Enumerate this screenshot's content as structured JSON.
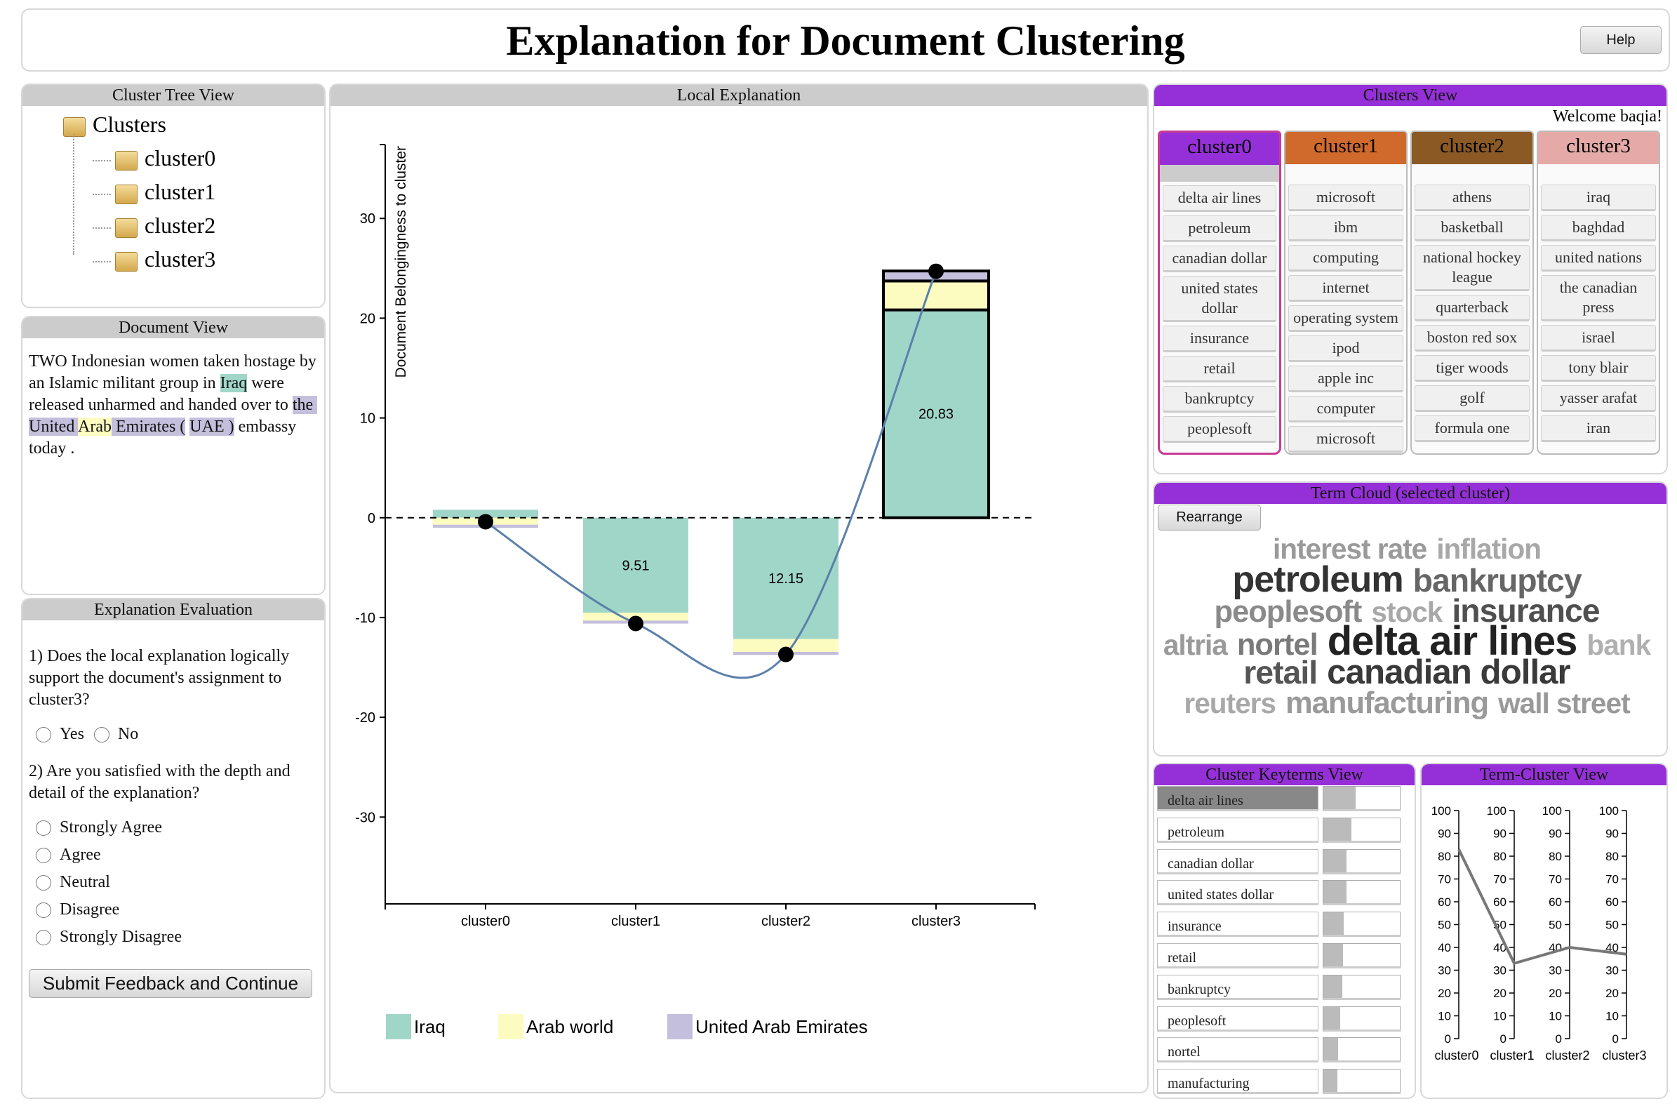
{
  "header": {
    "title": "Explanation for Document Clustering",
    "help": "Help"
  },
  "cluster_tree": {
    "title": "Cluster Tree View",
    "root": "Clusters",
    "children": [
      "cluster0",
      "cluster1",
      "cluster2",
      "cluster3"
    ]
  },
  "document_view": {
    "title": "Document View",
    "segments": [
      {
        "text": "TWO Indonesian women taken hostage by an Islamic militant group in ",
        "color": null
      },
      {
        "text": "Iraq",
        "color": "#a0d6c8"
      },
      {
        "text": " were released unharmed and handed over to ",
        "color": null
      },
      {
        "text": "the United",
        "color": "#c3bfdc"
      },
      {
        "text": " ",
        "color": "#c3bfdc"
      },
      {
        "text": "Arab",
        "color": "#fdfcc0"
      },
      {
        "text": " ",
        "color": "#c3bfdc"
      },
      {
        "text": "Emirates (",
        "color": "#c3bfdc"
      },
      {
        "text": " ",
        "color": null
      },
      {
        "text": "UAE )",
        "color": "#c3bfdc"
      },
      {
        "text": " embassy today .",
        "color": null
      }
    ]
  },
  "evaluation": {
    "title": "Explanation Evaluation",
    "questions": [
      {
        "text": "1) Does the local explanation logically support the document's assignment to cluster3?",
        "options": [
          "Yes",
          "No"
        ]
      },
      {
        "text": "2) Are you satisfied with the depth and detail of the explanation?",
        "options": [
          "Strongly Agree",
          "Agree",
          "Neutral",
          "Disagree",
          "Strongly Disagree"
        ]
      }
    ],
    "submit": "Submit Feedback and Continue"
  },
  "clusters_view": {
    "title": "Clusters View",
    "welcome": "Welcome baqia!",
    "selected": "cluster0",
    "clusters": [
      {
        "name": "cluster0",
        "color": "#9530d8",
        "terms": [
          "delta air lines",
          "petroleum",
          "canadian dollar",
          "united states dollar",
          "insurance",
          "retail",
          "bankruptcy",
          "peoplesoft"
        ]
      },
      {
        "name": "cluster1",
        "color": "#d0692c",
        "terms": [
          "microsoft",
          "ibm",
          "computing",
          "internet",
          "operating system",
          "ipod",
          "apple inc",
          "computer",
          "microsoft"
        ]
      },
      {
        "name": "cluster2",
        "color": "#8b5a24",
        "terms": [
          "athens",
          "basketball",
          "national hockey league",
          "quarterback",
          "boston red sox",
          "tiger woods",
          "golf",
          "formula one"
        ]
      },
      {
        "name": "cluster3",
        "color": "#e5aaa8",
        "terms": [
          "iraq",
          "baghdad",
          "united nations",
          "the canadian press",
          "israel",
          "tony blair",
          "yasser arafat",
          "iran"
        ]
      }
    ]
  },
  "term_cloud": {
    "title": "Term Cloud (selected cluster)",
    "button": "Rearrange",
    "rows": [
      [
        {
          "text": "interest rate",
          "weight": 7,
          "color": "#9a9a9a"
        },
        {
          "text": "inflation",
          "weight": 7,
          "color": "#a8a8a8"
        }
      ],
      [
        {
          "text": "petroleum",
          "weight": 9,
          "color": "#333333"
        },
        {
          "text": "bankruptcy",
          "weight": 8,
          "color": "#666666"
        }
      ],
      [
        {
          "text": "peoplesoft",
          "weight": 7.5,
          "color": "#8a8a8a"
        },
        {
          "text": "stock",
          "weight": 7,
          "color": "#a8a8a8"
        },
        {
          "text": "insurance",
          "weight": 8,
          "color": "#505050"
        }
      ],
      [
        {
          "text": "altria",
          "weight": 7,
          "color": "#9a9a9a"
        },
        {
          "text": "nortel",
          "weight": 7.5,
          "color": "#7a7a7a"
        },
        {
          "text": "delta air lines",
          "weight": 10,
          "color": "#222222"
        },
        {
          "text": "bank",
          "weight": 7,
          "color": "#b0b0b0"
        }
      ],
      [
        {
          "text": "retail",
          "weight": 8,
          "color": "#555555"
        },
        {
          "text": "canadian dollar",
          "weight": 8.5,
          "color": "#3a3a3a"
        }
      ],
      [
        {
          "text": "reuters",
          "weight": 7,
          "color": "#a8a8a8"
        },
        {
          "text": "manufacturing",
          "weight": 7.5,
          "color": "#9a9a9a"
        },
        {
          "text": "wall street",
          "weight": 7,
          "color": "#999999"
        }
      ]
    ]
  },
  "keyterms": {
    "title": "Cluster Keyterms View",
    "terms": [
      "delta air lines",
      "petroleum",
      "canadian dollar",
      "united states dollar",
      "insurance",
      "retail",
      "bankruptcy",
      "peoplesoft",
      "nortel",
      "manufacturing"
    ],
    "values": [
      42,
      37,
      30,
      30,
      27,
      26,
      25,
      22,
      19,
      18
    ],
    "color": "#bbbbbb"
  },
  "chart_data": [
    {
      "type": "bar",
      "stacked": true,
      "title": "Local Explanation",
      "y_label": "Document Belongingness to cluster",
      "categories": [
        "cluster0",
        "cluster1",
        "cluster2",
        "cluster3"
      ],
      "series": [
        {
          "name": "Iraq",
          "color": "#a0d6c8",
          "values": [
            0.8,
            -9.51,
            -12.15,
            20.83
          ],
          "value_labels": [
            null,
            "9.51",
            "12.15",
            "20.83"
          ]
        },
        {
          "name": "Arab world",
          "color": "#fdfcc0",
          "values": [
            -0.7,
            -0.8,
            -1.3,
            2.9
          ]
        },
        {
          "name": "United Arab Emirates",
          "color": "#c3bfdc",
          "values": [
            -0.3,
            -0.3,
            -0.3,
            1.0
          ]
        }
      ],
      "line": {
        "color": "#5b80aa",
        "values": [
          -0.4,
          -10.6,
          -13.7,
          24.7
        ]
      },
      "selected": "cluster3",
      "ylim": [
        -38.7,
        37.4
      ],
      "yticks": [
        -30,
        -20,
        -10,
        0,
        10,
        20,
        30
      ]
    },
    {
      "type": "parallel",
      "title": "Term-Cluster View",
      "categories": [
        "cluster0",
        "cluster1",
        "cluster2",
        "cluster3"
      ],
      "values": [
        83,
        33,
        40,
        37
      ],
      "color": "#777777",
      "ylim": [
        0,
        100
      ],
      "yticks": [
        0,
        10,
        20,
        30,
        40,
        50,
        60,
        70,
        80,
        90,
        100
      ]
    }
  ]
}
